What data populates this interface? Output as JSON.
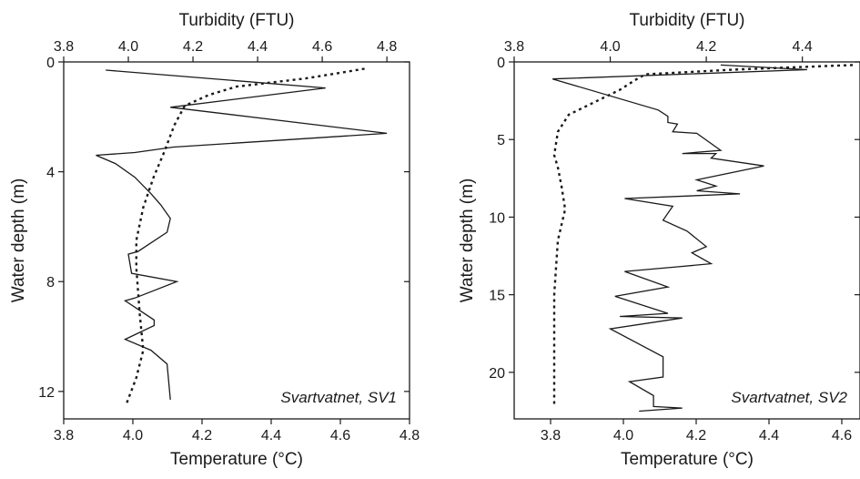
{
  "chart_data": [
    {
      "type": "line",
      "annotation": "Svartvatnet, SV1",
      "top_axis": {
        "label": "Turbidity (FTU)",
        "range": [
          3.8,
          4.87
        ],
        "ticks": [
          "3.8",
          "4.0",
          "4.2",
          "4.4",
          "4.6",
          "4.8"
        ]
      },
      "bottom_axis": {
        "label": "Temperature (°C)",
        "range": [
          3.8,
          4.8
        ],
        "ticks": [
          "3.8",
          "4.0",
          "4.2",
          "4.4",
          "4.6",
          "4.8"
        ]
      },
      "y_axis": {
        "label": "Water depth (m)",
        "range": [
          0,
          13
        ],
        "inverted": true,
        "ticks": [
          "0",
          "4",
          "8",
          "12"
        ]
      },
      "series": [
        {
          "style": "solid",
          "axis": "top",
          "points": [
            [
              3.93,
              0.3
            ],
            [
              4.61,
              0.95
            ],
            [
              4.13,
              1.65
            ],
            [
              4.8,
              2.6
            ],
            [
              4.14,
              3.1
            ],
            [
              4.02,
              3.3
            ],
            [
              3.9,
              3.4
            ],
            [
              3.96,
              3.7
            ],
            [
              4.02,
              4.2
            ],
            [
              4.07,
              4.8
            ],
            [
              4.1,
              5.2
            ],
            [
              4.13,
              5.7
            ],
            [
              4.12,
              6.2
            ],
            [
              4.03,
              6.9
            ],
            [
              4.0,
              7.0
            ],
            [
              4.01,
              7.7
            ],
            [
              4.15,
              8.0
            ],
            [
              4.02,
              8.6
            ],
            [
              3.99,
              8.7
            ],
            [
              4.08,
              9.4
            ],
            [
              4.08,
              9.6
            ],
            [
              3.99,
              10.1
            ],
            [
              4.07,
              10.5
            ],
            [
              4.12,
              11.0
            ],
            [
              4.13,
              12.3
            ]
          ]
        },
        {
          "style": "dotted",
          "axis": "bottom",
          "points": [
            [
              4.67,
              0.25
            ],
            [
              4.5,
              0.6
            ],
            [
              4.3,
              0.9
            ],
            [
              4.22,
              1.2
            ],
            [
              4.15,
              1.6
            ],
            [
              4.12,
              2.3
            ],
            [
              4.09,
              3.3
            ],
            [
              4.06,
              4.2
            ],
            [
              4.03,
              5.3
            ],
            [
              4.01,
              6.5
            ],
            [
              4.01,
              7.5
            ],
            [
              4.02,
              9.2
            ],
            [
              4.03,
              10.5
            ],
            [
              4.01,
              11.5
            ],
            [
              3.98,
              12.5
            ]
          ]
        }
      ]
    },
    {
      "type": "line",
      "annotation": "Svartvatnet, SV2",
      "top_axis": {
        "label": "Turbidity (FTU)",
        "range": [
          3.8,
          4.52
        ],
        "ticks": [
          "3.8",
          "4.0",
          "4.2",
          "4.4"
        ]
      },
      "bottom_axis": {
        "label": "Temperature (°C)",
        "range": [
          3.7,
          4.65
        ],
        "ticks": [
          "3.8",
          "4.0",
          "4.2",
          "4.4",
          "4.6"
        ]
      },
      "y_axis": {
        "label": "Water depth (m)",
        "range": [
          0,
          23
        ],
        "inverted": true,
        "ticks": [
          "0",
          "5",
          "10",
          "15",
          "20"
        ]
      },
      "series": [
        {
          "style": "solid",
          "axis": "top",
          "points": [
            [
              4.23,
              0.2
            ],
            [
              4.41,
              0.5
            ],
            [
              3.88,
              1.1
            ],
            [
              4.1,
              3.1
            ],
            [
              4.12,
              3.5
            ],
            [
              4.12,
              3.9
            ],
            [
              4.14,
              4.0
            ],
            [
              4.13,
              4.5
            ],
            [
              4.18,
              4.6
            ],
            [
              4.23,
              5.7
            ],
            [
              4.15,
              5.9
            ],
            [
              4.22,
              5.9
            ],
            [
              4.21,
              6.2
            ],
            [
              4.32,
              6.7
            ],
            [
              4.18,
              7.6
            ],
            [
              4.22,
              8.0
            ],
            [
              4.18,
              8.3
            ],
            [
              4.27,
              8.5
            ],
            [
              4.03,
              8.8
            ],
            [
              4.13,
              9.3
            ],
            [
              4.11,
              10.2
            ],
            [
              4.16,
              10.9
            ],
            [
              4.2,
              11.9
            ],
            [
              4.17,
              12.3
            ],
            [
              4.21,
              13.0
            ],
            [
              4.14,
              13.2
            ],
            [
              4.03,
              13.5
            ],
            [
              4.12,
              14.5
            ],
            [
              4.01,
              15.1
            ],
            [
              4.12,
              16.2
            ],
            [
              4.02,
              16.4
            ],
            [
              4.15,
              16.5
            ],
            [
              4.0,
              17.2
            ],
            [
              4.11,
              19.0
            ],
            [
              4.11,
              20.3
            ],
            [
              4.04,
              20.6
            ],
            [
              4.09,
              21.5
            ],
            [
              4.09,
              22.2
            ],
            [
              4.15,
              22.3
            ],
            [
              4.06,
              22.5
            ]
          ]
        },
        {
          "style": "dotted",
          "axis": "bottom",
          "points": [
            [
              4.63,
              0.2
            ],
            [
              4.3,
              0.5
            ],
            [
              4.06,
              0.8
            ],
            [
              4.03,
              1.2
            ],
            [
              3.99,
              1.8
            ],
            [
              3.92,
              2.6
            ],
            [
              3.85,
              3.4
            ],
            [
              3.82,
              4.5
            ],
            [
              3.81,
              6.0
            ],
            [
              3.82,
              6.8
            ],
            [
              3.83,
              8.0
            ],
            [
              3.84,
              9.5
            ],
            [
              3.82,
              11.5
            ],
            [
              3.81,
              15.0
            ],
            [
              3.81,
              20.0
            ],
            [
              3.81,
              22.2
            ]
          ]
        }
      ]
    }
  ]
}
